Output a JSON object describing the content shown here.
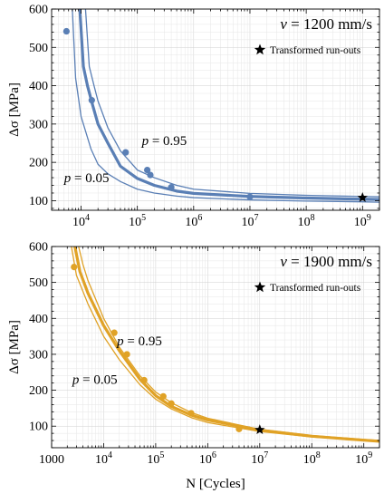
{
  "chart_data": [
    {
      "type": "line",
      "annotation": "v = 1200 mm/s",
      "annotation_prefix": "v",
      "annotation_rest": " = 1200 mm/s",
      "legend": "Transformed run-outs",
      "legend_marker": "star",
      "ylabel": "Δσ [MPa]",
      "xlabel": "",
      "xscale": "log",
      "xlim": [
        3000,
        2000000000
      ],
      "ylim": [
        75,
        600
      ],
      "yticks": [
        100,
        200,
        300,
        400,
        500,
        600
      ],
      "xtick_labels": [
        {
          "text": "10^4",
          "base": "10",
          "exp": "4",
          "value": 10000
        },
        {
          "text": "10^5",
          "base": "10",
          "exp": "5",
          "value": 100000
        },
        {
          "text": "10^6",
          "base": "10",
          "exp": "6",
          "value": 1000000
        },
        {
          "text": "10^7",
          "base": "10",
          "exp": "7",
          "value": 10000000
        },
        {
          "text": "10^8",
          "base": "10",
          "exp": "8",
          "value": 100000000
        },
        {
          "text": "10^9",
          "base": "10",
          "exp": "9",
          "value": 1000000000
        }
      ],
      "color": "#5a7fb5",
      "curve_labels": [
        {
          "text": "p = 0.95",
          "p": "p",
          "rest": " = 0.95",
          "x": 120000,
          "y": 245
        },
        {
          "text": "p = 0.05",
          "p": "p",
          "rest": " = 0.05",
          "x": 5000,
          "y": 148
        }
      ],
      "series": [
        {
          "role": "median",
          "width": 3.2,
          "x": [
            9500,
            11000,
            13000,
            16000,
            20000,
            30000,
            50000,
            100000,
            200000,
            500000,
            1000000,
            10000000,
            100000000,
            1000000000,
            2000000000
          ],
          "y": [
            600,
            450,
            400,
            350,
            300,
            250,
            190,
            158,
            140,
            125,
            119,
            111,
            107,
            104,
            103
          ]
        },
        {
          "role": "p95",
          "width": 1.3,
          "x": [
            12000,
            14000,
            17000,
            20000,
            30000,
            50000,
            100000,
            200000,
            500000,
            1000000,
            10000000,
            100000000,
            1000000000,
            2000000000
          ],
          "y": [
            600,
            450,
            400,
            360,
            290,
            230,
            180,
            160,
            140,
            130,
            119,
            114,
            111,
            110
          ]
        },
        {
          "role": "p05",
          "width": 1.3,
          "x": [
            7000,
            8000,
            10000,
            15000,
            20000,
            30000,
            50000,
            100000,
            200000,
            500000,
            1000000,
            10000000,
            100000000,
            1000000000,
            2000000000
          ],
          "y": [
            600,
            420,
            320,
            235,
            195,
            170,
            150,
            130,
            120,
            112,
            108,
            102,
            99,
            97,
            96
          ]
        }
      ],
      "points": {
        "x": [
          5500,
          15500,
          62000,
          150000,
          170000,
          400000,
          10000000
        ],
        "y": [
          542,
          362,
          226,
          180,
          167,
          135,
          110
        ]
      },
      "runouts": {
        "x": [
          1000000000
        ],
        "y": [
          108
        ]
      }
    },
    {
      "type": "line",
      "annotation": "v = 1900 mm/s",
      "annotation_prefix": "v",
      "annotation_rest": " = 1900 mm/s",
      "legend": "Transformed run-outs",
      "legend_marker": "star",
      "ylabel": "Δσ [MPa]",
      "xlabel": "N [Cycles]",
      "xscale": "log",
      "xlim": [
        1000,
        2000000000
      ],
      "ylim": [
        40,
        600
      ],
      "yticks": [
        100,
        200,
        300,
        400,
        500,
        600
      ],
      "xtick_labels": [
        {
          "text": "1000",
          "base": "1000",
          "exp": "",
          "value": 1000
        },
        {
          "text": "10^4",
          "base": "10",
          "exp": "4",
          "value": 10000
        },
        {
          "text": "10^5",
          "base": "10",
          "exp": "5",
          "value": 100000
        },
        {
          "text": "10^6",
          "base": "10",
          "exp": "6",
          "value": 1000000
        },
        {
          "text": "10^7",
          "base": "10",
          "exp": "7",
          "value": 10000000
        },
        {
          "text": "10^8",
          "base": "10",
          "exp": "8",
          "value": 100000000
        },
        {
          "text": "10^9",
          "base": "10",
          "exp": "9",
          "value": 1000000000
        }
      ],
      "color": "#e0a226",
      "curve_labels": [
        {
          "text": "p = 0.95",
          "p": "p",
          "rest": " = 0.95",
          "x": 18000,
          "y": 325
        },
        {
          "text": "p = 0.05",
          "p": "p",
          "rest": " = 0.05",
          "x": 2500,
          "y": 218
        }
      ],
      "series": [
        {
          "role": "median",
          "width": 3.2,
          "x": [
            2800,
            3500,
            5000,
            10000,
            20000,
            50000,
            100000,
            200000,
            500000,
            1000000,
            10000000,
            100000000,
            1000000000,
            2000000000
          ],
          "y": [
            600,
            530,
            470,
            380,
            310,
            230,
            185,
            155,
            130,
            117,
            89,
            72,
            61,
            58
          ]
        },
        {
          "role": "p95",
          "width": 1.3,
          "x": [
            3300,
            4000,
            5000,
            10000,
            20000,
            50000,
            100000,
            200000,
            500000,
            1000000,
            10000000,
            100000000,
            1000000000,
            2000000000
          ],
          "y": [
            600,
            550,
            505,
            400,
            320,
            240,
            195,
            165,
            137,
            122,
            91,
            74,
            63,
            60
          ]
        },
        {
          "role": "p05",
          "width": 1.3,
          "x": [
            2400,
            3000,
            5000,
            10000,
            20000,
            50000,
            100000,
            200000,
            500000,
            1000000,
            10000000,
            100000000,
            1000000000,
            2000000000
          ],
          "y": [
            600,
            520,
            440,
            350,
            285,
            215,
            175,
            148,
            123,
            110,
            85,
            70,
            60,
            57
          ]
        }
      ],
      "points": {
        "x": [
          2700,
          16000,
          28000,
          60000,
          140000,
          200000,
          480000,
          4000000
        ],
        "y": [
          543,
          360,
          300,
          228,
          183,
          163,
          136,
          92
        ]
      },
      "runouts": {
        "x": [
          10000000
        ],
        "y": [
          90
        ]
      }
    }
  ]
}
